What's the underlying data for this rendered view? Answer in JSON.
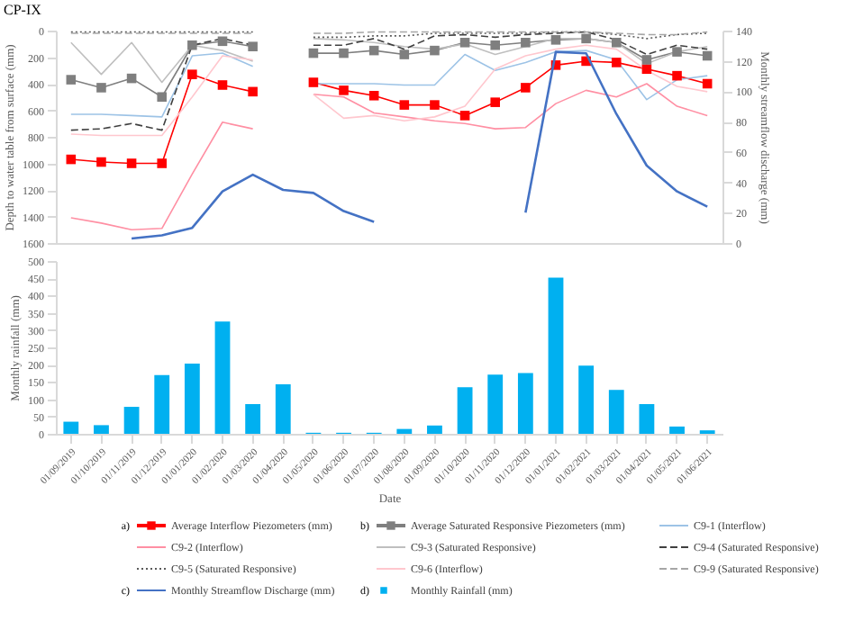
{
  "chart_data": [
    {
      "type": "line",
      "title": "CP-IX",
      "categories": [
        "01/09/2019",
        "01/10/2019",
        "01/11/2019",
        "01/12/2019",
        "01/01/2020",
        "01/02/2020",
        "01/03/2020",
        "01/04/2020",
        "01/05/2020",
        "01/06/2020",
        "01/07/2020",
        "01/08/2020",
        "01/09/2020",
        "01/10/2020",
        "01/11/2020",
        "01/12/2020",
        "01/01/2021",
        "01/02/2021",
        "01/03/2021",
        "01/04/2021",
        "01/05/2021",
        "01/06/2021"
      ],
      "ylabel": "Depth to water table from surface (mm)",
      "y2label": "Monthly streamflow discharge (mm)",
      "ylim": [
        1600,
        0
      ],
      "yticks": [
        0,
        200,
        400,
        600,
        800,
        1000,
        1200,
        1400,
        1600
      ],
      "y2lim": [
        0,
        140
      ],
      "y2ticks": [
        0,
        20,
        40,
        60,
        80,
        100,
        120,
        140
      ],
      "tick_labels": "y",
      "grid": false,
      "legend": "bottom",
      "annotations": [
        "a)",
        "b)",
        "c)"
      ],
      "series": [
        {
          "name": "Average Interflow Piezometers (mm)",
          "color": "#ff0000",
          "marker": "square",
          "line_style": "solid",
          "values": [
            970,
            990,
            1000,
            1000,
            330,
            410,
            460,
            null,
            390,
            450,
            490,
            560,
            560,
            640,
            540,
            430,
            260,
            230,
            240,
            290,
            340,
            400
          ]
        },
        {
          "name": "Average Saturated Responsive Piezometers (mm)",
          "color": "#7f7f7f",
          "marker": "square",
          "line_style": "solid",
          "values": [
            370,
            430,
            360,
            500,
            110,
            80,
            120,
            null,
            170,
            170,
            150,
            180,
            150,
            90,
            110,
            90,
            70,
            60,
            90,
            220,
            160,
            190
          ]
        },
        {
          "name": "C9-1 (Interflow)",
          "color": "#9dc3e6",
          "marker": "none",
          "line_style": "solid",
          "values": [
            630,
            630,
            640,
            650,
            190,
            170,
            270,
            null,
            400,
            400,
            400,
            410,
            410,
            180,
            300,
            240,
            160,
            150,
            220,
            520,
            370,
            340
          ]
        },
        {
          "name": "C9-2 (Interflow)",
          "color": "#ff8fa3",
          "marker": "none",
          "line_style": "solid",
          "values": [
            1410,
            1450,
            1500,
            1490,
            1080,
            690,
            740,
            null,
            480,
            500,
            620,
            650,
            680,
            700,
            740,
            730,
            550,
            450,
            500,
            400,
            570,
            640
          ]
        },
        {
          "name": "C9-3 (Saturated Responsive)",
          "color": "#bfbfbf",
          "marker": "none",
          "line_style": "solid",
          "values": [
            90,
            330,
            90,
            390,
            110,
            150,
            230,
            null,
            60,
            70,
            90,
            120,
            140,
            100,
            180,
            120,
            60,
            60,
            90,
            250,
            160,
            120
          ]
        },
        {
          "name": "C9-4 (Saturated Responsive)",
          "color": "#404040",
          "marker": "none",
          "line_style": "dashed",
          "values": [
            750,
            740,
            700,
            750,
            110,
            60,
            110,
            null,
            110,
            110,
            60,
            140,
            40,
            30,
            50,
            30,
            20,
            10,
            70,
            180,
            110,
            140
          ]
        },
        {
          "name": "C9-5 (Saturated Responsive)",
          "color": "#595959",
          "marker": "none",
          "line_style": "dotted",
          "values": [
            10,
            10,
            10,
            10,
            10,
            10,
            10,
            null,
            50,
            50,
            40,
            40,
            20,
            20,
            20,
            20,
            10,
            10,
            30,
            60,
            30,
            20
          ]
        },
        {
          "name": "C9-6 (Interflow)",
          "color": "#ffc7ce",
          "marker": "none",
          "line_style": "solid",
          "values": [
            780,
            790,
            790,
            790,
            500,
            190,
            220,
            null,
            480,
            660,
            640,
            680,
            650,
            570,
            290,
            190,
            140,
            110,
            140,
            300,
            420,
            460
          ]
        },
        {
          "name": "C9-9 (Saturated Responsive)",
          "color": "#a6a6a6",
          "marker": "none",
          "line_style": "dashed",
          "values": [
            20,
            20,
            20,
            20,
            20,
            20,
            20,
            null,
            20,
            20,
            10,
            10,
            10,
            10,
            10,
            10,
            10,
            10,
            20,
            30,
            30,
            10
          ]
        },
        {
          "name": "Monthly Streamflow Discharge (mm)",
          "color": "#4472c4",
          "marker": "none",
          "line_style": "solid",
          "axis": "y2",
          "values": [
            null,
            null,
            3,
            5,
            10,
            34,
            45,
            35,
            33,
            21,
            14,
            null,
            null,
            null,
            null,
            20,
            126,
            125,
            85,
            51,
            34,
            24
          ]
        }
      ]
    },
    {
      "type": "bar",
      "categories": [
        "01/09/2019",
        "01/10/2019",
        "01/11/2019",
        "01/12/2019",
        "01/01/2020",
        "01/02/2020",
        "01/03/2020",
        "01/04/2020",
        "01/05/2020",
        "01/06/2020",
        "01/07/2020",
        "01/08/2020",
        "01/09/2020",
        "01/10/2020",
        "01/11/2020",
        "01/12/2020",
        "01/01/2021",
        "01/02/2021",
        "01/03/2021",
        "01/04/2021",
        "01/05/2021",
        "01/06/2021"
      ],
      "xlabel": "Date",
      "ylabel": "Monthly rainfall (mm)",
      "ylim": [
        0,
        500
      ],
      "yticks": [
        0,
        50,
        100,
        150,
        200,
        250,
        300,
        350,
        400,
        450,
        500
      ],
      "grid": false,
      "legend": "bottom",
      "annotations": [
        "d)"
      ],
      "series": [
        {
          "name": "Monthly Rainfall (mm)",
          "color": "#00b0f0",
          "values": [
            35,
            25,
            78,
            170,
            203,
            325,
            86,
            143,
            3,
            3,
            3,
            14,
            24,
            135,
            171,
            176,
            452,
            197,
            127,
            86,
            21,
            10
          ]
        }
      ]
    }
  ]
}
